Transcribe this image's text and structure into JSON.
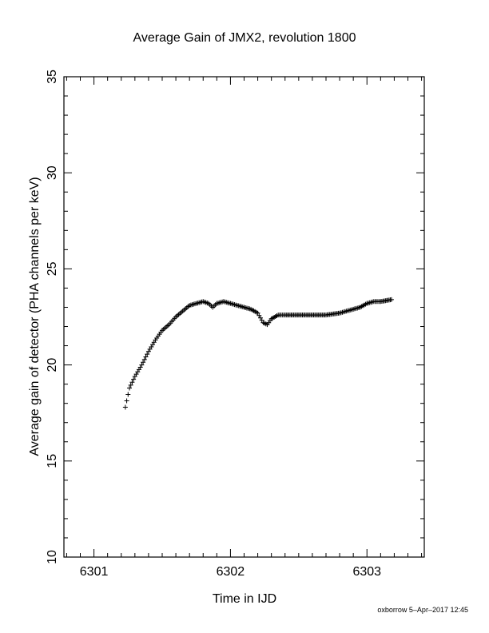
{
  "chart_data": {
    "type": "scatter",
    "title": "Average Gain of JMX2, revolution 1800",
    "xlabel": "Time in IJD",
    "ylabel": "Average gain of detector (PHA channels per keV)",
    "xlim": [
      6300.78,
      6303.42
    ],
    "ylim": [
      10,
      35
    ],
    "xticks": [
      6301,
      6302,
      6303
    ],
    "yticks": [
      10,
      15,
      20,
      25,
      30,
      35
    ],
    "marker": "plus",
    "series": [
      {
        "x": [
          6301.23,
          6301.26,
          6301.3,
          6301.35,
          6301.4,
          6301.45,
          6301.5,
          6301.55,
          6301.6,
          6301.65,
          6301.7,
          6301.75,
          6301.8,
          6301.84,
          6301.87,
          6301.9,
          6301.95,
          6302.0,
          6302.05,
          6302.1,
          6302.15,
          6302.2,
          6302.24,
          6302.27,
          6302.3,
          6302.35,
          6302.4,
          6302.5,
          6302.6,
          6302.7,
          6302.8,
          6302.85,
          6302.9,
          6302.95,
          6303.0,
          6303.05,
          6303.1,
          6303.18
        ],
        "y": [
          17.8,
          18.8,
          19.4,
          20.0,
          20.7,
          21.3,
          21.8,
          22.1,
          22.5,
          22.8,
          23.1,
          23.2,
          23.3,
          23.2,
          23.0,
          23.2,
          23.3,
          23.2,
          23.1,
          23.0,
          22.9,
          22.7,
          22.2,
          22.1,
          22.4,
          22.6,
          22.6,
          22.6,
          22.6,
          22.6,
          22.7,
          22.8,
          22.9,
          23.0,
          23.2,
          23.3,
          23.3,
          23.4
        ]
      }
    ]
  },
  "footer": "oxborrow  5–Apr–2017 12:45"
}
